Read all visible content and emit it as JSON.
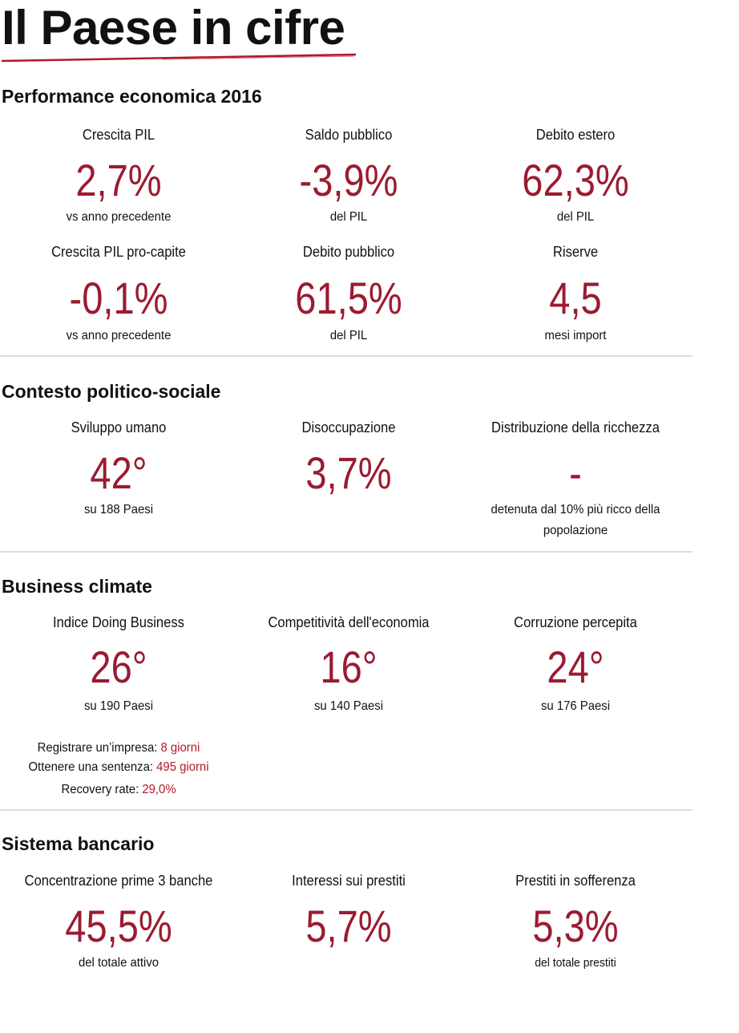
{
  "title": "Il Paese in cifre",
  "colors": {
    "accent": "#9b1b30"
  },
  "sections": [
    {
      "heading": "Performance economica 2016",
      "items": [
        {
          "label": "Crescita PIL",
          "value": "2,7%",
          "sub": "vs anno precedente"
        },
        {
          "label": "Saldo pubblico",
          "value": "-3,9%",
          "sub": "del PIL"
        },
        {
          "label": "Debito estero",
          "value": "62,3%",
          "sub": "del PIL"
        },
        {
          "label": "Crescita PIL pro-capite",
          "value": "-0,1%",
          "sub": "vs anno precedente"
        },
        {
          "label": "Debito pubblico",
          "value": "61,5%",
          "sub": "del PIL"
        },
        {
          "label": "Riserve",
          "value": "4,5",
          "sub": "mesi import"
        }
      ]
    },
    {
      "heading": "Contesto politico-sociale",
      "items": [
        {
          "label": "Sviluppo umano",
          "value": "42°",
          "sub": "su 188 Paesi"
        },
        {
          "label": "Disoccupazione",
          "value": "3,7%"
        },
        {
          "label": "Distribuzione della ricchezza",
          "value": "-",
          "sub": "detenuta dal 10% più ricco della",
          "sub2": "popolazione"
        }
      ]
    },
    {
      "heading": "Business climate",
      "items": [
        {
          "label": "Indice Doing Business",
          "value": "26°",
          "sub": "su 190 Paesi"
        },
        {
          "label": "Competitività dell'economia",
          "value": "16°",
          "sub": "su 140 Paesi"
        },
        {
          "label": "Corruzione percepita",
          "value": "24°",
          "sub": "su 176 Paesi"
        }
      ],
      "details": [
        {
          "label": "Registrare un’impresa:",
          "value": "8 giorni"
        },
        {
          "label": "Ottenere una sentenza:",
          "value": "495 giorni"
        },
        {
          "label": "Recovery rate:",
          "value": "29,0%"
        }
      ]
    },
    {
      "heading": "Sistema bancario",
      "items": [
        {
          "label": "Concentrazione prime 3 banche",
          "value": "45,5%",
          "sub": "del totale attivo"
        },
        {
          "label": "Interessi sui prestiti",
          "value": "5,7%"
        },
        {
          "label": "Prestiti in sofferenza",
          "value": "5,3%",
          "sub": "del totale prestiti"
        }
      ]
    }
  ]
}
